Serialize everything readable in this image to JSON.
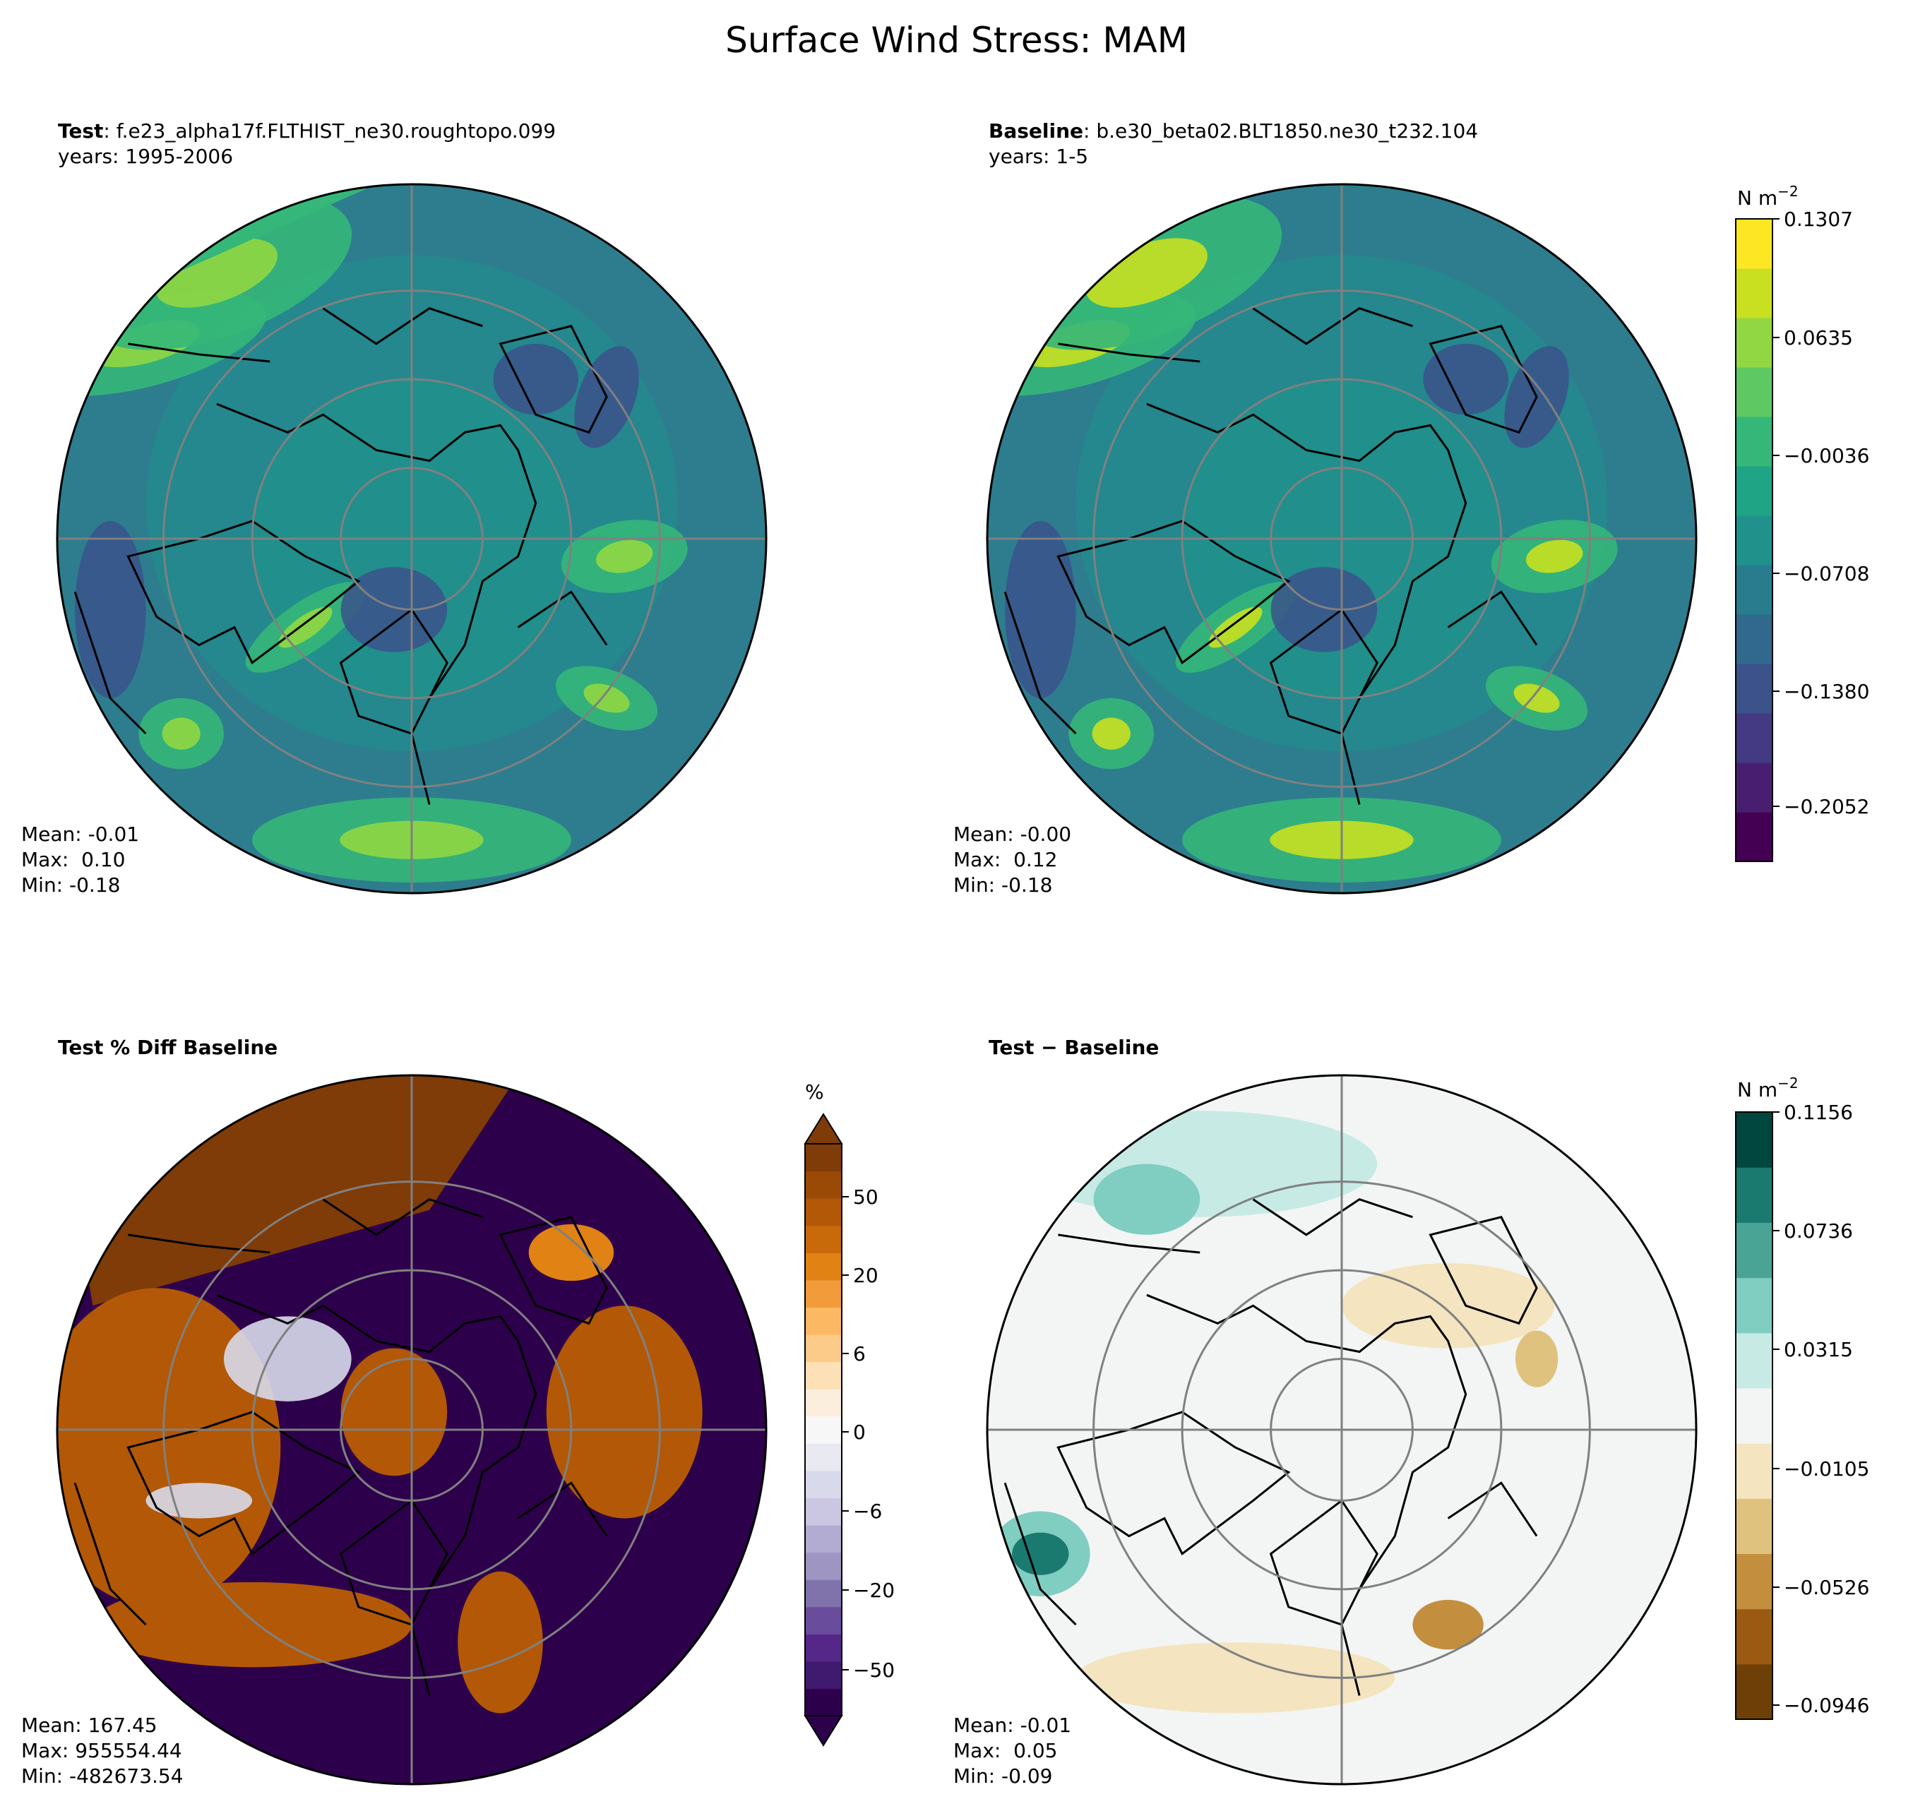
{
  "figure": {
    "title": "Surface Wind Stress: MAM"
  },
  "panels": [
    {
      "id": "test",
      "title_bold": "Test",
      "title_rest": ": f.e23_alpha17f.FLTHIST_ne30.roughtopo.099",
      "subtitle": "years: 1995-2006",
      "stats": {
        "mean": "Mean: -0.01",
        "max": "Max:  0.10",
        "min": "Min: -0.18"
      },
      "colormap": "viridis"
    },
    {
      "id": "baseline",
      "title_bold": "Baseline",
      "title_rest": ": b.e30_beta02.BLT1850.ne30_t232.104",
      "subtitle": "years: 1-5",
      "stats": {
        "mean": "Mean: -0.00",
        "max": "Max:  0.12",
        "min": "Min: -0.18"
      },
      "colormap": "viridis"
    },
    {
      "id": "pctdiff",
      "title_bold": "Test % Diff Baseline",
      "title_rest": "",
      "subtitle": "",
      "stats": {
        "mean": "Mean: 167.45",
        "max": "Max: 955554.44",
        "min": "Min: -482673.54"
      },
      "colormap": "PuOr"
    },
    {
      "id": "diff",
      "title_bold": "Test − Baseline",
      "title_rest": "",
      "subtitle": "",
      "stats": {
        "mean": "Mean: -0.01",
        "max": "Max:  0.05",
        "min": "Min: -0.09"
      },
      "colormap": "BrBG"
    }
  ],
  "colorbars": [
    {
      "id": "cb-main",
      "unit_base": "N m",
      "unit_sup": "−2",
      "range": [
        -0.24,
        0.1307
      ],
      "ticks": [
        "0.1307",
        "0.0635",
        "−0.0036",
        "−0.0708",
        "−0.1380",
        "−0.2052"
      ],
      "colors": [
        "#440154",
        "#481f70",
        "#443983",
        "#3b528b",
        "#31688e",
        "#287c8e",
        "#21918c",
        "#20a486",
        "#35b779",
        "#5ec962",
        "#90d743",
        "#c8e020",
        "#fde725"
      ]
    },
    {
      "id": "cb-pct",
      "unit": "%",
      "ticks": [
        "50",
        "20",
        "6",
        "0",
        "−6",
        "−20",
        "−50"
      ],
      "colors": [
        "#2d004b",
        "#401a6e",
        "#542788",
        "#6a4c9c",
        "#8073ac",
        "#9e95c3",
        "#b2abd2",
        "#cbc6e1",
        "#d8daeb",
        "#e9e9f2",
        "#f7f7f7",
        "#fbeedd",
        "#fee0b6",
        "#fdcb89",
        "#fdb863",
        "#f29b3a",
        "#e08214",
        "#c96a0a",
        "#b35806",
        "#9a4a05",
        "#7f3b08"
      ]
    },
    {
      "id": "cb-diff",
      "unit_base": "N m",
      "unit_sup": "−2",
      "ticks": [
        "0.1156",
        "0.0736",
        "0.0315",
        "−0.0105",
        "−0.0526",
        "−0.0946"
      ],
      "colors": [
        "#6e4008",
        "#9b5a11",
        "#c38e3e",
        "#dfc27d",
        "#f4e4bf",
        "#f3f5f4",
        "#c7eae5",
        "#80cdc1",
        "#4aa496",
        "#1b7a70",
        "#01463f"
      ]
    }
  ]
}
